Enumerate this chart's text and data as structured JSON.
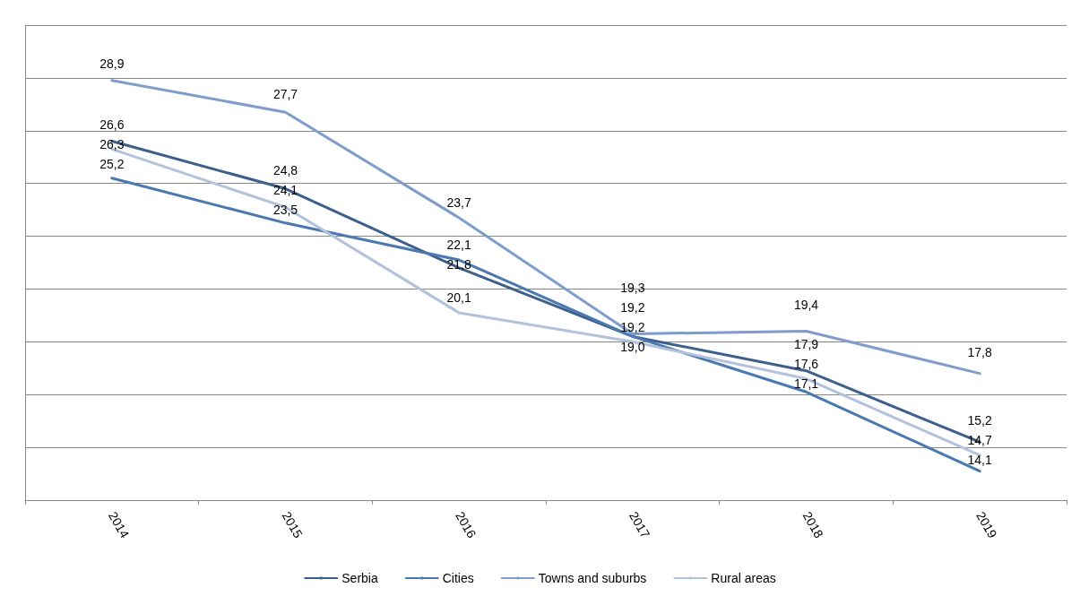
{
  "chart_data": {
    "type": "line",
    "categories": [
      "2014",
      "2015",
      "2016",
      "2017",
      "2018",
      "2019"
    ],
    "series": [
      {
        "name": "Serbia",
        "color": "#3d5f8c",
        "values": [
          26.6,
          24.8,
          21.8,
          19.2,
          17.9,
          15.2
        ],
        "value_labels": [
          "26,6",
          "24,8",
          "21,8",
          "19,2",
          "17,9",
          "15,2"
        ]
      },
      {
        "name": "Cities",
        "color": "#4a78b0",
        "values": [
          25.2,
          23.5,
          22.1,
          19.2,
          17.1,
          14.1
        ],
        "value_labels": [
          "25,2",
          "23,5",
          "22,1",
          "19,2",
          "17,1",
          "14,1"
        ]
      },
      {
        "name": "Towns and suburbs",
        "color": "#7e9dcc",
        "values": [
          28.9,
          27.7,
          23.7,
          19.3,
          19.4,
          17.8
        ],
        "value_labels": [
          "28,9",
          "27,7",
          "23,7",
          "19,3",
          "19,4",
          "17,8"
        ]
      },
      {
        "name": "Rural areas",
        "color": "#b3c2dc",
        "values": [
          26.3,
          24.1,
          20.1,
          19.0,
          17.6,
          14.7
        ],
        "value_labels": [
          "26,3",
          "24,1",
          "20,1",
          "19,0",
          "17,6",
          "14,7"
        ]
      }
    ],
    "ylim": [
      13,
      31
    ],
    "yticks": [
      {
        "value": 13,
        "label": null
      },
      {
        "value": 15,
        "label": null
      },
      {
        "value": 17,
        "label": null
      },
      {
        "value": 19,
        "label": null
      },
      {
        "value": 21,
        "label": null
      },
      {
        "value": 23,
        "label": null
      },
      {
        "value": 25,
        "label": null
      },
      {
        "value": 27,
        "label": null
      },
      {
        "value": 29,
        "label": null
      },
      {
        "value": 31,
        "label": null
      }
    ],
    "tick_labels": "x",
    "grid": "y",
    "legend": "bottom",
    "marker": "none",
    "line_style": "solid"
  }
}
